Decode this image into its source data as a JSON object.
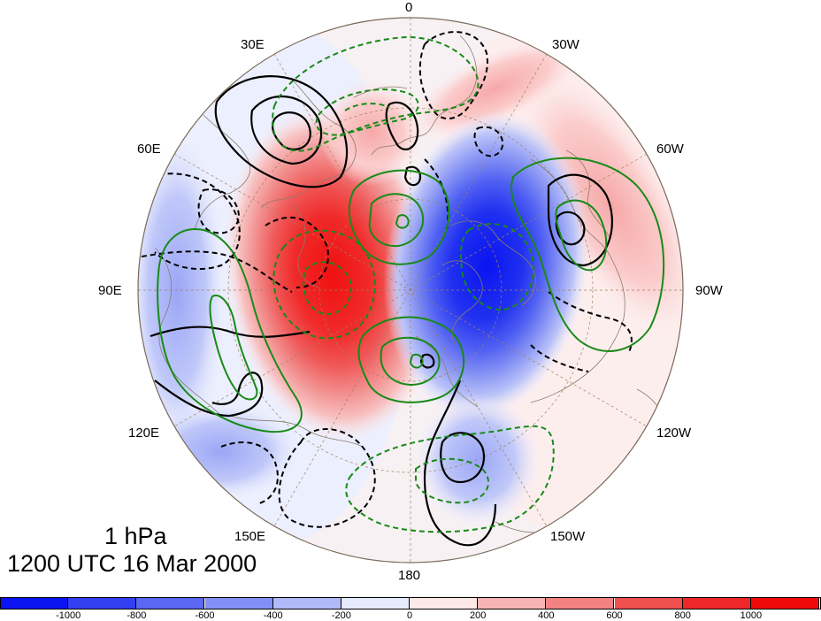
{
  "level": "1 hPa",
  "timestamp": "1200 UTC 16 Mar 2000",
  "longitude_labels": [
    {
      "name": "lon-0",
      "text": "0"
    },
    {
      "name": "lon-30w",
      "text": "30W"
    },
    {
      "name": "lon-60w",
      "text": "60W"
    },
    {
      "name": "lon-90w",
      "text": "90W"
    },
    {
      "name": "lon-120w",
      "text": "120W"
    },
    {
      "name": "lon-150w",
      "text": "150W"
    },
    {
      "name": "lon-180",
      "text": "180"
    },
    {
      "name": "lon-150e",
      "text": "150E"
    },
    {
      "name": "lon-120e",
      "text": "120E"
    },
    {
      "name": "lon-90e",
      "text": "90E"
    },
    {
      "name": "lon-60e",
      "text": "60E"
    },
    {
      "name": "lon-30e",
      "text": "30E"
    }
  ],
  "colorbar": {
    "ticks": [
      "-1000",
      "-800",
      "-600",
      "-400",
      "-200",
      "0",
      "200",
      "400",
      "600",
      "800",
      "1000"
    ],
    "colors": [
      "#0a14f0",
      "#3240f2",
      "#5a68f4",
      "#8290f5",
      "#b1baf8",
      "#e6eafd",
      "#fde8e8",
      "#f8b4b4",
      "#f28282",
      "#f05050",
      "#ee2828",
      "#f00a0a"
    ]
  },
  "colors": {
    "positive_contour": "#000000",
    "negative_contour": "#000000",
    "secondary_contour": "#178a17",
    "map_grid": "#a08060",
    "coastlines": "#8b7b6b"
  }
}
